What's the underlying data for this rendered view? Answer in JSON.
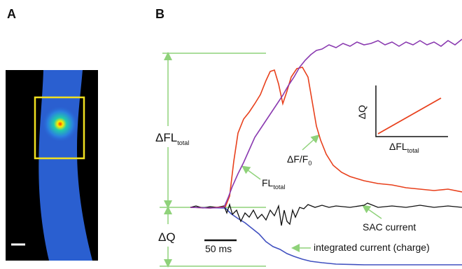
{
  "panels": {
    "a": "A",
    "b": "B"
  },
  "labels": {
    "delta_fl_total": {
      "main": "ΔFL",
      "sub": "total"
    },
    "delta_q": "ΔQ",
    "fl_total": {
      "main": "FL",
      "sub": "total"
    },
    "dff": {
      "main": "ΔF/F",
      "sub": "0"
    },
    "sac_current": "SAC current",
    "integrated_current": "integrated current (charge)",
    "scale_bar": "50 ms"
  },
  "inset": {
    "y_label": "ΔQ",
    "x_label": {
      "main": "ΔFL",
      "sub": "total"
    }
  }
}
